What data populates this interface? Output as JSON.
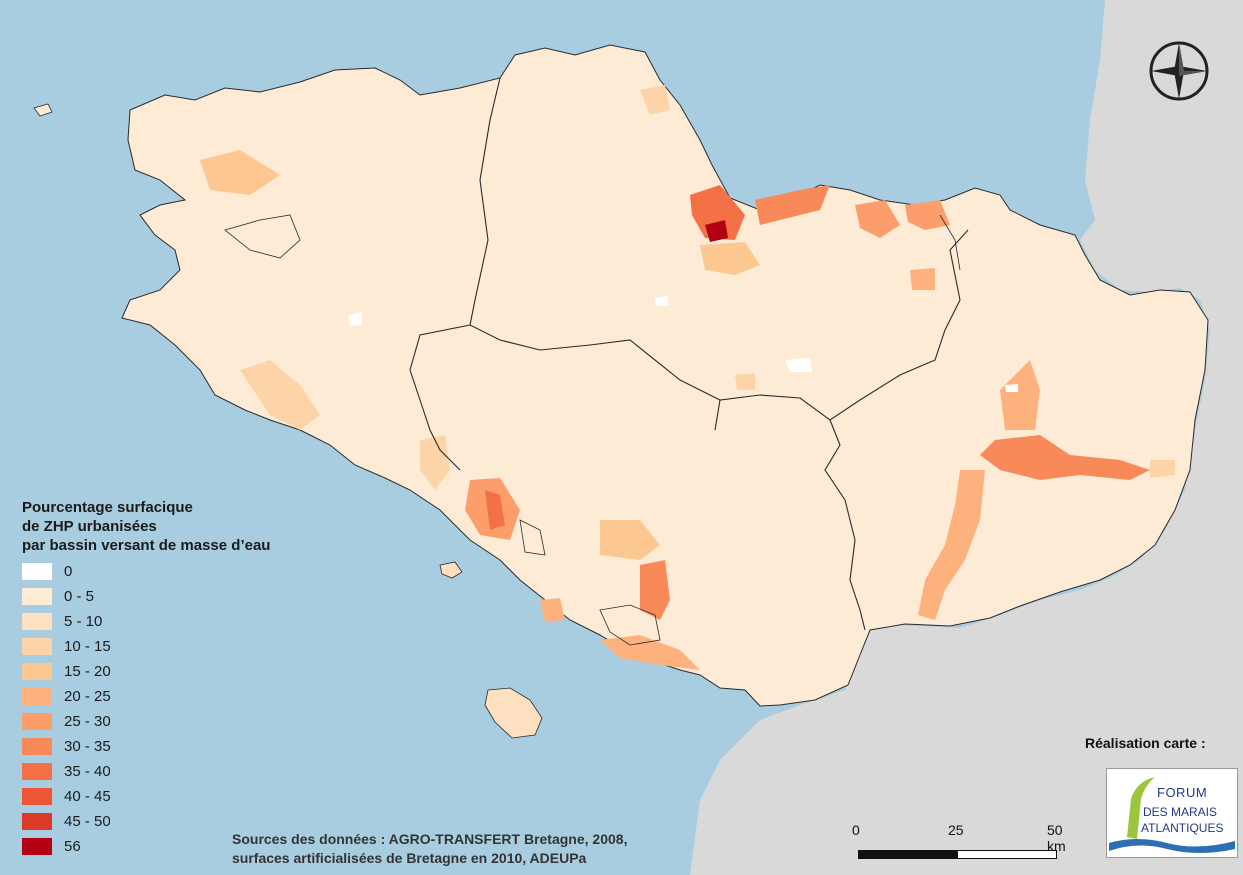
{
  "legend": {
    "title_lines": [
      "Pourcentage surfacique",
      "de ZHP urbanisées",
      "par bassin versant de masse d’eau"
    ],
    "classes": [
      {
        "label": "0",
        "color": "#ffffff"
      },
      {
        "label": "0 - 5",
        "color": "#fdebd6"
      },
      {
        "label": "5 - 10",
        "color": "#fde0bf"
      },
      {
        "label": "10 - 15",
        "color": "#fdd4a8"
      },
      {
        "label": "15 - 20",
        "color": "#fdc791"
      },
      {
        "label": "20 - 25",
        "color": "#fdb27d"
      },
      {
        "label": "25 - 30",
        "color": "#fc9e6b"
      },
      {
        "label": "30 - 35",
        "color": "#f88a59"
      },
      {
        "label": "35 - 40",
        "color": "#f47047"
      },
      {
        "label": "40 - 45",
        "color": "#ec5537"
      },
      {
        "label": "45 - 50",
        "color": "#dc3a29"
      },
      {
        "label": "56",
        "color": "#b40013"
      }
    ]
  },
  "sources": {
    "line1": "Sources des données : AGRO-TRANSFERT Bretagne, 2008,",
    "line2": "surfaces artificialisées de Bretagne en 2010, ADEUPa"
  },
  "credit": {
    "title": "Réalisation carte :",
    "logo_text_1": "FORUM",
    "logo_text_2": "DES MARAIS",
    "logo_text_3": "ATLANTIQUES"
  },
  "scale": {
    "ticks": [
      "0",
      "25",
      "50 km"
    ]
  },
  "map_colors": {
    "sea": "#a8cde0",
    "land_outside": "#d9d9d9",
    "border": "#2a2a2a"
  },
  "compass_icon": "compass-rose-icon"
}
